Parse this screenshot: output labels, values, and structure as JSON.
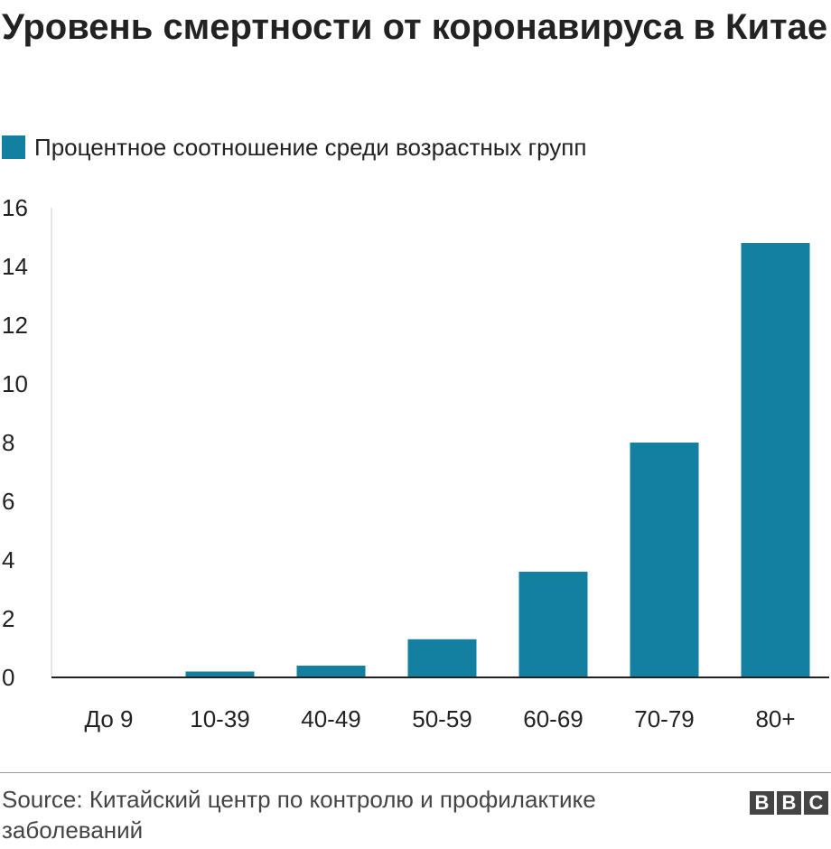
{
  "title": "Уровень смертности от коронавируса в Китае",
  "legend": {
    "label": "Процентное соотношение среди возрастных групп",
    "color": "#1380a1"
  },
  "chart_data": {
    "type": "bar",
    "title": "Уровень смертности от коронавируса в Китае",
    "xlabel": "",
    "ylabel": "",
    "categories": [
      "До 9",
      "10-39",
      "40-49",
      "50-59",
      "60-69",
      "70-79",
      "80+"
    ],
    "series": [
      {
        "name": "Процентное соотношение среди возрастных групп",
        "values": [
          0,
          0.2,
          0.4,
          1.3,
          3.6,
          8.0,
          14.8
        ]
      }
    ],
    "ylim": [
      0,
      16
    ],
    "yticks": [
      0,
      2,
      4,
      6,
      8,
      10,
      12,
      14,
      16
    ],
    "grid": false,
    "legend_position": "top-left"
  },
  "source": "Source: Китайский центр по контролю и профилактике заболеваний",
  "logo": {
    "letters": [
      "B",
      "B",
      "C"
    ],
    "color": "#444444"
  }
}
